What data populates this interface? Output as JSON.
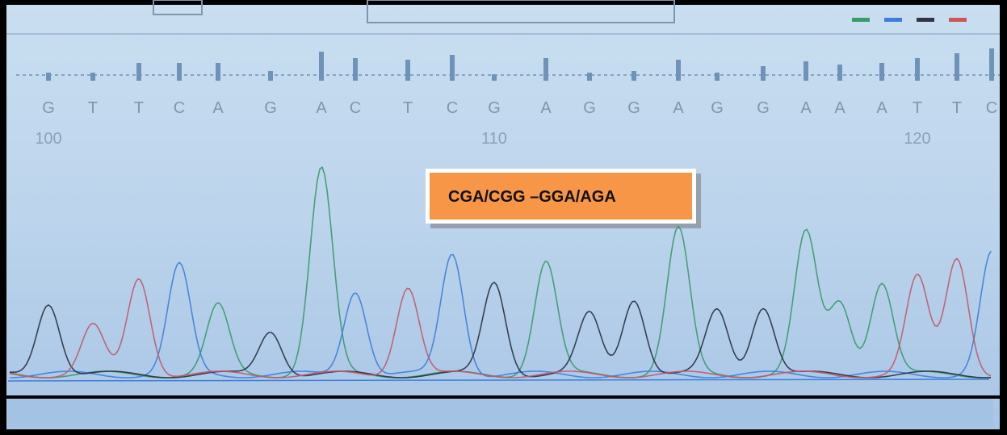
{
  "bases": [
    "G",
    "T",
    "T",
    "C",
    "A",
    "G",
    "A",
    "C",
    "T",
    "C",
    "G",
    "A",
    "G",
    "G",
    "A",
    "G",
    "G",
    "A",
    "A",
    "A",
    "T",
    "T",
    "C"
  ],
  "positions": [
    100,
    110,
    120
  ],
  "annotation": "CGA/CGG –GGA/AGA"
}
